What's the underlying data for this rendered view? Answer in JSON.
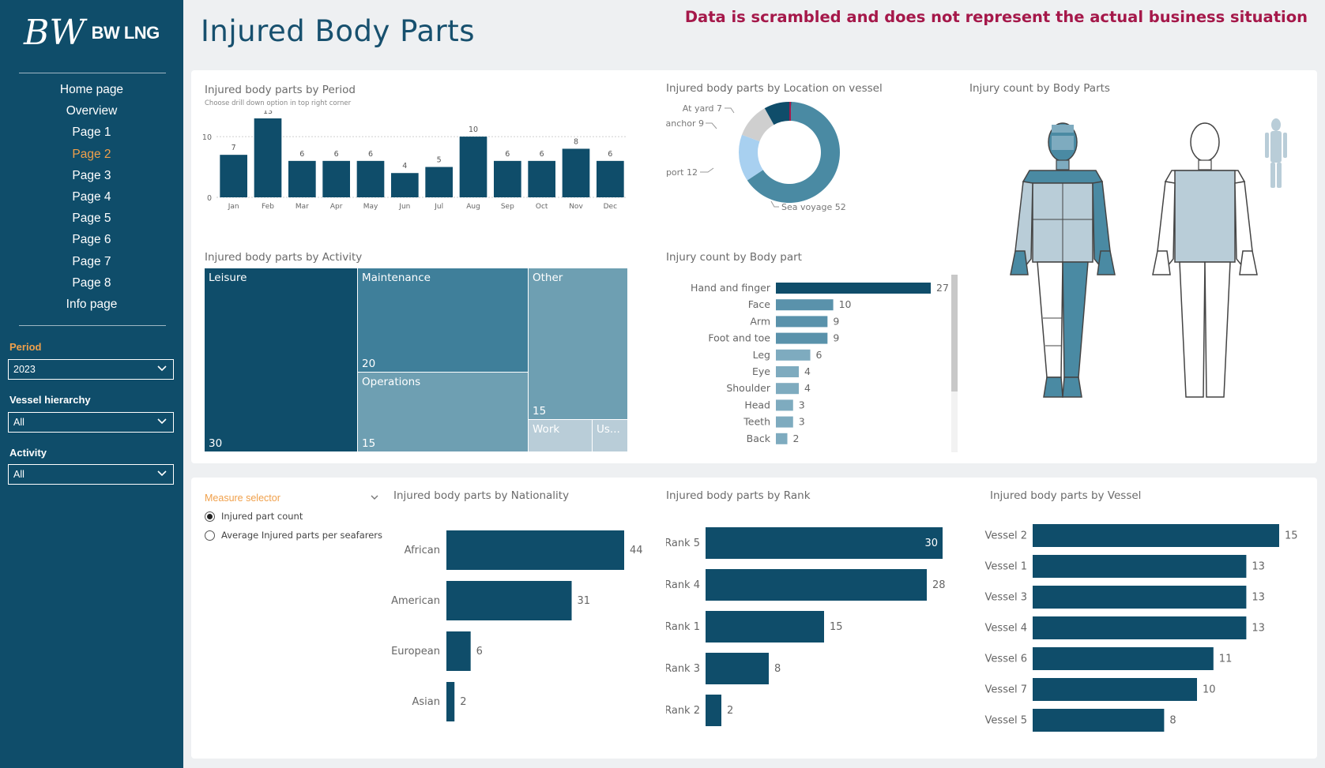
{
  "sidebar": {
    "logo_mark": "BW",
    "logo_text": "BW LNG",
    "nav": [
      "Home page",
      "Overview",
      "Page 1",
      "Page 2",
      "Page 3",
      "Page 4",
      "Page 5",
      "Page 6",
      "Page 7",
      "Page 8",
      "Info page"
    ],
    "active_nav": "Page 2",
    "slicers": [
      {
        "label": "Period",
        "value": "2023"
      },
      {
        "label": "Vessel hierarchy",
        "value": "All"
      },
      {
        "label": "Activity",
        "value": "All"
      }
    ]
  },
  "header": {
    "title": "Injured Body Parts",
    "disclaimer": "Data is scrambled and does not represent the actual business situation"
  },
  "colors": {
    "dark": "#0f4d6a",
    "mid": "#4a8aa3",
    "light": "#7eabbf",
    "pale": "#b9cdd8",
    "accent": "#f0a04b",
    "alert": "#a5184a"
  },
  "body_map_title": "Injury count by Body Parts",
  "measure_selector": {
    "title": "Measure selector",
    "options": [
      "Injured part count",
      "Average Injured parts per seafarers"
    ],
    "selected": "Injured part count"
  },
  "chart_data": [
    {
      "id": "period",
      "type": "bar",
      "title": "Injured body parts by Period",
      "subtitle": "Choose drill down option in top right corner",
      "categories": [
        "Jan",
        "Feb",
        "Mar",
        "Apr",
        "May",
        "Jun",
        "Jul",
        "Aug",
        "Sep",
        "Oct",
        "Nov",
        "Dec"
      ],
      "values": [
        7,
        13,
        6,
        6,
        6,
        4,
        5,
        10,
        6,
        6,
        8,
        6
      ],
      "yticks": [
        0,
        10
      ],
      "ylim": [
        0,
        13
      ]
    },
    {
      "id": "location",
      "type": "pie",
      "title": "Injured body parts by Location on vessel",
      "labels": [
        "At yard",
        "At anchor",
        "In port",
        "Sea voyage"
      ],
      "values": [
        7,
        9,
        12,
        52
      ]
    },
    {
      "id": "activity",
      "type": "treemap",
      "title": "Injured body parts by Activity",
      "labels": [
        "Leisure",
        "Maintenance",
        "Operations",
        "Other",
        "Work",
        "Us..."
      ],
      "values": [
        30,
        20,
        15,
        15,
        null,
        null
      ]
    },
    {
      "id": "bodypart",
      "type": "bar",
      "title": "Injury count by Body part",
      "categories": [
        "Hand and finger",
        "Face",
        "Arm",
        "Foot and toe",
        "Leg",
        "Eye",
        "Shoulder",
        "Head",
        "Teeth",
        "Back"
      ],
      "values": [
        27,
        10,
        9,
        9,
        6,
        4,
        4,
        3,
        3,
        2
      ]
    },
    {
      "id": "nationality",
      "type": "bar",
      "title": "Injured body parts by Nationality",
      "categories": [
        "African",
        "American",
        "European",
        "Asian"
      ],
      "values": [
        44,
        31,
        6,
        2
      ]
    },
    {
      "id": "rank",
      "type": "bar",
      "title": "Injured body parts by Rank",
      "categories": [
        "Rank 5",
        "Rank 4",
        "Rank 1",
        "Rank 3",
        "Rank 2"
      ],
      "values": [
        30,
        28,
        15,
        8,
        2
      ]
    },
    {
      "id": "vessel",
      "type": "bar",
      "title": "Injured body parts by Vessel",
      "categories": [
        "Vessel 2",
        "Vessel 1",
        "Vessel 3",
        "Vessel 4",
        "Vessel 6",
        "Vessel 7",
        "Vessel 5"
      ],
      "values": [
        15,
        13,
        13,
        13,
        11,
        10,
        8
      ]
    }
  ]
}
